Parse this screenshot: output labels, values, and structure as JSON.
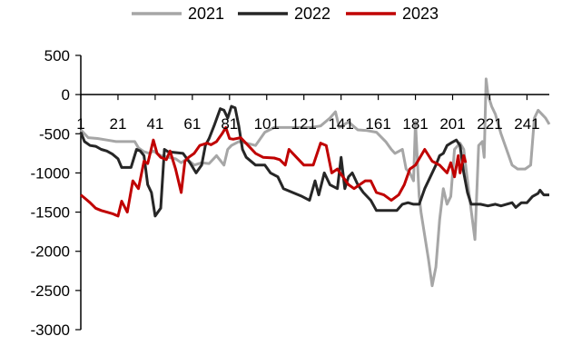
{
  "chart_data": {
    "type": "line",
    "title": "",
    "xlabel": "",
    "ylabel": "",
    "legend_position": "top",
    "grid": false,
    "xlim": [
      1,
      253
    ],
    "ylim": [
      -3000,
      500
    ],
    "x_ticks": [
      1,
      21,
      41,
      61,
      81,
      101,
      121,
      141,
      161,
      181,
      201,
      221,
      241
    ],
    "x_tick_labels": [
      "1",
      "21",
      "41",
      "61",
      "81",
      "101",
      "121",
      "141",
      "161",
      "181",
      "201",
      "221",
      "241"
    ],
    "y_ticks": [
      500,
      0,
      -500,
      -1000,
      -1500,
      -2000,
      -2500,
      -3000
    ],
    "y_tick_labels": [
      "500",
      "0",
      "-500",
      "-1000",
      "-1500",
      "-2000",
      "-2500",
      "-3000"
    ],
    "series": [
      {
        "name": "2021",
        "color": "#a6a6a6",
        "points": [
          [
            1,
            -450
          ],
          [
            5,
            -550
          ],
          [
            10,
            -560
          ],
          [
            15,
            -580
          ],
          [
            20,
            -600
          ],
          [
            25,
            -600
          ],
          [
            30,
            -600
          ],
          [
            32,
            -680
          ],
          [
            35,
            -730
          ],
          [
            38,
            -750
          ],
          [
            40,
            -720
          ],
          [
            44,
            -780
          ],
          [
            48,
            -800
          ],
          [
            52,
            -820
          ],
          [
            55,
            -870
          ],
          [
            58,
            -820
          ],
          [
            62,
            -900
          ],
          [
            66,
            -870
          ],
          [
            70,
            -880
          ],
          [
            74,
            -780
          ],
          [
            78,
            -900
          ],
          [
            80,
            -700
          ],
          [
            82,
            -650
          ],
          [
            86,
            -600
          ],
          [
            90,
            -620
          ],
          [
            95,
            -650
          ],
          [
            100,
            -480
          ],
          [
            105,
            -420
          ],
          [
            110,
            -420
          ],
          [
            115,
            -420
          ],
          [
            120,
            -420
          ],
          [
            125,
            -420
          ],
          [
            130,
            -400
          ],
          [
            135,
            -300
          ],
          [
            138,
            -220
          ],
          [
            140,
            -420
          ],
          [
            145,
            -350
          ],
          [
            150,
            -450
          ],
          [
            155,
            -460
          ],
          [
            160,
            -480
          ],
          [
            165,
            -600
          ],
          [
            168,
            -700
          ],
          [
            170,
            -750
          ],
          [
            174,
            -700
          ],
          [
            176,
            -950
          ],
          [
            178,
            -1000
          ],
          [
            180,
            -1100
          ],
          [
            181,
            -350
          ],
          [
            183,
            -1300
          ],
          [
            184,
            -1500
          ],
          [
            186,
            -1800
          ],
          [
            188,
            -2100
          ],
          [
            190,
            -2440
          ],
          [
            192,
            -2200
          ],
          [
            194,
            -1600
          ],
          [
            196,
            -1200
          ],
          [
            198,
            -1400
          ],
          [
            200,
            -1300
          ],
          [
            202,
            -700
          ],
          [
            205,
            -620
          ],
          [
            207,
            -700
          ],
          [
            210,
            -1300
          ],
          [
            213,
            -1850
          ],
          [
            215,
            -650
          ],
          [
            217,
            -600
          ],
          [
            218,
            -800
          ],
          [
            219,
            200
          ],
          [
            220,
            0
          ],
          [
            222,
            -150
          ],
          [
            224,
            -250
          ],
          [
            227,
            -500
          ],
          [
            230,
            -700
          ],
          [
            233,
            -900
          ],
          [
            236,
            -950
          ],
          [
            240,
            -950
          ],
          [
            243,
            -900
          ],
          [
            245,
            -300
          ],
          [
            247,
            -200
          ],
          [
            249,
            -250
          ],
          [
            251,
            -300
          ],
          [
            253,
            -380
          ]
        ]
      },
      {
        "name": "2022",
        "color": "#262626",
        "points": [
          [
            1,
            -480
          ],
          [
            3,
            -600
          ],
          [
            6,
            -650
          ],
          [
            9,
            -660
          ],
          [
            12,
            -700
          ],
          [
            15,
            -720
          ],
          [
            18,
            -760
          ],
          [
            21,
            -820
          ],
          [
            23,
            -930
          ],
          [
            28,
            -930
          ],
          [
            31,
            -700
          ],
          [
            33,
            -720
          ],
          [
            35,
            -780
          ],
          [
            37,
            -1150
          ],
          [
            39,
            -1250
          ],
          [
            41,
            -1550
          ],
          [
            44,
            -1450
          ],
          [
            46,
            -700
          ],
          [
            48,
            -730
          ],
          [
            52,
            -740
          ],
          [
            56,
            -750
          ],
          [
            60,
            -880
          ],
          [
            63,
            -1000
          ],
          [
            66,
            -900
          ],
          [
            68,
            -650
          ],
          [
            70,
            -560
          ],
          [
            73,
            -380
          ],
          [
            76,
            -180
          ],
          [
            78,
            -200
          ],
          [
            80,
            -300
          ],
          [
            82,
            -150
          ],
          [
            84,
            -170
          ],
          [
            86,
            -400
          ],
          [
            88,
            -700
          ],
          [
            90,
            -800
          ],
          [
            95,
            -900
          ],
          [
            100,
            -900
          ],
          [
            103,
            -1000
          ],
          [
            107,
            -1050
          ],
          [
            110,
            -1200
          ],
          [
            115,
            -1250
          ],
          [
            120,
            -1300
          ],
          [
            124,
            -1350
          ],
          [
            127,
            -1100
          ],
          [
            129,
            -1280
          ],
          [
            132,
            -1000
          ],
          [
            135,
            -1150
          ],
          [
            139,
            -1200
          ],
          [
            141,
            -800
          ],
          [
            143,
            -1200
          ],
          [
            145,
            -1050
          ],
          [
            147,
            -1000
          ],
          [
            150,
            -1150
          ],
          [
            153,
            -1250
          ],
          [
            157,
            -1350
          ],
          [
            160,
            -1480
          ],
          [
            167,
            -1480
          ],
          [
            171,
            -1480
          ],
          [
            174,
            -1400
          ],
          [
            177,
            -1380
          ],
          [
            180,
            -1400
          ],
          [
            183,
            -1400
          ],
          [
            186,
            -1200
          ],
          [
            189,
            -1050
          ],
          [
            192,
            -900
          ],
          [
            194,
            -780
          ],
          [
            196,
            -750
          ],
          [
            198,
            -650
          ],
          [
            200,
            -620
          ],
          [
            203,
            -580
          ],
          [
            205,
            -650
          ],
          [
            207,
            -1000
          ],
          [
            209,
            -1250
          ],
          [
            211,
            -1400
          ],
          [
            216,
            -1400
          ],
          [
            220,
            -1420
          ],
          [
            224,
            -1400
          ],
          [
            227,
            -1420
          ],
          [
            230,
            -1400
          ],
          [
            233,
            -1380
          ],
          [
            235,
            -1440
          ],
          [
            238,
            -1380
          ],
          [
            241,
            -1380
          ],
          [
            244,
            -1300
          ],
          [
            247,
            -1260
          ],
          [
            248,
            -1220
          ],
          [
            250,
            -1280
          ],
          [
            253,
            -1280
          ]
        ]
      },
      {
        "name": "2023",
        "color": "#c00000",
        "points": [
          [
            1,
            -1280
          ],
          [
            3,
            -1320
          ],
          [
            6,
            -1380
          ],
          [
            9,
            -1450
          ],
          [
            12,
            -1480
          ],
          [
            15,
            -1500
          ],
          [
            18,
            -1520
          ],
          [
            21,
            -1550
          ],
          [
            23,
            -1360
          ],
          [
            26,
            -1500
          ],
          [
            29,
            -1100
          ],
          [
            32,
            -1200
          ],
          [
            35,
            -850
          ],
          [
            37,
            -880
          ],
          [
            40,
            -580
          ],
          [
            42,
            -750
          ],
          [
            44,
            -800
          ],
          [
            47,
            -830
          ],
          [
            49,
            -720
          ],
          [
            52,
            -950
          ],
          [
            55,
            -1250
          ],
          [
            57,
            -850
          ],
          [
            59,
            -800
          ],
          [
            62,
            -750
          ],
          [
            65,
            -650
          ],
          [
            69,
            -620
          ],
          [
            71,
            -640
          ],
          [
            74,
            -600
          ],
          [
            77,
            -500
          ],
          [
            79,
            -420
          ],
          [
            81,
            -560
          ],
          [
            83,
            -570
          ],
          [
            87,
            -550
          ],
          [
            91,
            -650
          ],
          [
            95,
            -750
          ],
          [
            99,
            -800
          ],
          [
            105,
            -810
          ],
          [
            108,
            -830
          ],
          [
            111,
            -900
          ],
          [
            113,
            -700
          ],
          [
            117,
            -800
          ],
          [
            121,
            -900
          ],
          [
            126,
            -900
          ],
          [
            130,
            -620
          ],
          [
            133,
            -650
          ],
          [
            136,
            -1000
          ],
          [
            139,
            -950
          ],
          [
            142,
            -1050
          ],
          [
            145,
            -1150
          ],
          [
            148,
            -1200
          ],
          [
            151,
            -1150
          ],
          [
            154,
            -1100
          ],
          [
            157,
            -1100
          ],
          [
            160,
            -1250
          ],
          [
            164,
            -1280
          ],
          [
            168,
            -1350
          ],
          [
            172,
            -1280
          ],
          [
            175,
            -1150
          ],
          [
            178,
            -950
          ],
          [
            181,
            -900
          ],
          [
            183,
            -820
          ],
          [
            186,
            -700
          ],
          [
            190,
            -850
          ],
          [
            194,
            -900
          ],
          [
            198,
            -1000
          ],
          [
            200,
            -870
          ],
          [
            202,
            -1050
          ],
          [
            204,
            -780
          ],
          [
            205,
            -1000
          ],
          [
            207,
            -780
          ],
          [
            208,
            -870
          ]
        ]
      }
    ]
  }
}
